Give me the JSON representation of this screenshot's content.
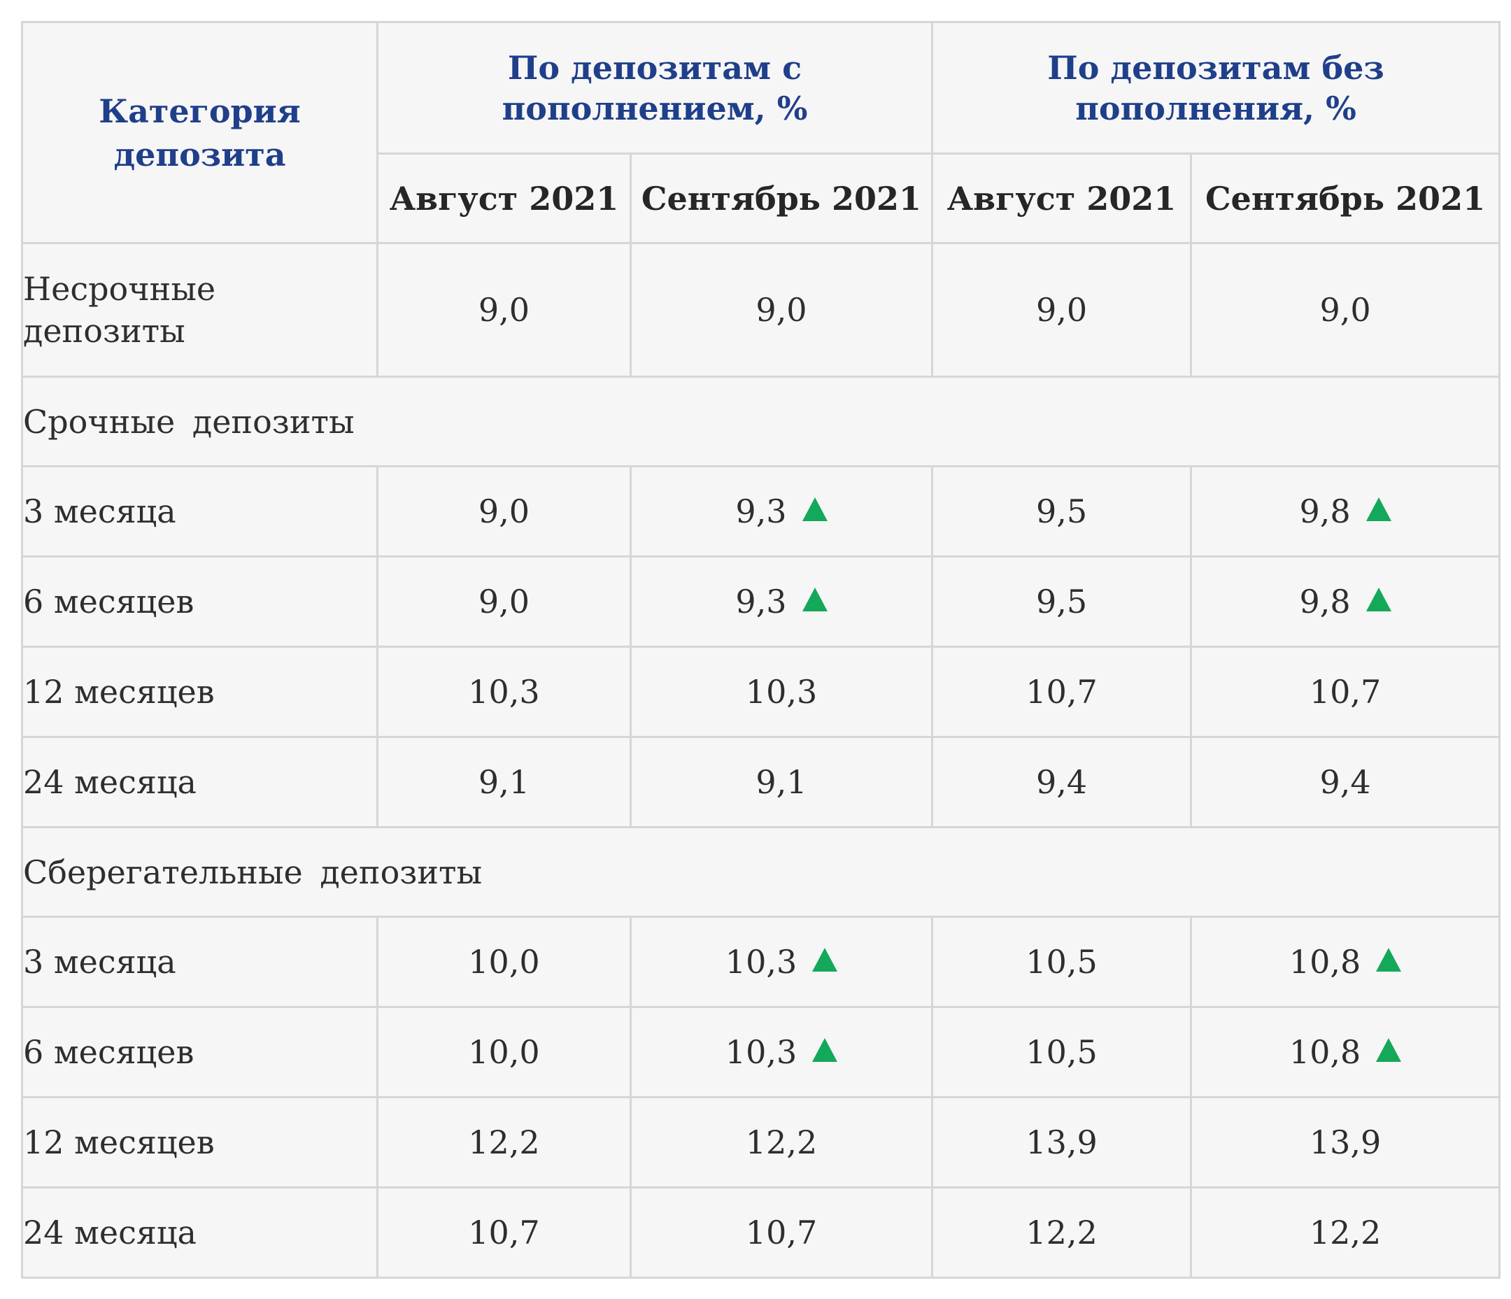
{
  "table": {
    "header": {
      "category": "Категория депозита",
      "group_with_topup": "По депозитам с пополнением, %",
      "group_without_topup": "По депозитам без пополнения, %",
      "months": [
        "Август 2021",
        "Сентябрь 2021",
        "Август 2021",
        "Сентябрь 2021"
      ]
    },
    "demand": {
      "label": "Несрочные депозиты",
      "values": [
        "9,0",
        "9,0",
        "9,0",
        "9,0"
      ],
      "up": [
        false,
        false,
        false,
        false
      ]
    },
    "term_section": "Срочные депозиты",
    "term_rows": [
      {
        "label": "3 месяца",
        "values": [
          "9,0",
          "9,3",
          "9,5",
          "9,8"
        ],
        "up": [
          false,
          true,
          false,
          true
        ]
      },
      {
        "label": "6 месяцев",
        "values": [
          "9,0",
          "9,3",
          "9,5",
          "9,8"
        ],
        "up": [
          false,
          true,
          false,
          true
        ]
      },
      {
        "label": "12 месяцев",
        "values": [
          "10,3",
          "10,3",
          "10,7",
          "10,7"
        ],
        "up": [
          false,
          false,
          false,
          false
        ]
      },
      {
        "label": "24 месяца",
        "values": [
          "9,1",
          "9,1",
          "9,4",
          "9,4"
        ],
        "up": [
          false,
          false,
          false,
          false
        ]
      }
    ],
    "savings_section": "Сберегательные депозиты",
    "savings_rows": [
      {
        "label": "3 месяца",
        "values": [
          "10,0",
          "10,3",
          "10,5",
          "10,8"
        ],
        "up": [
          false,
          true,
          false,
          true
        ]
      },
      {
        "label": "6 месяцев",
        "values": [
          "10,0",
          "10,3",
          "10,5",
          "10,8"
        ],
        "up": [
          false,
          true,
          false,
          true
        ]
      },
      {
        "label": "12 месяцев",
        "values": [
          "12,2",
          "12,2",
          "13,9",
          "13,9"
        ],
        "up": [
          false,
          false,
          false,
          false
        ]
      },
      {
        "label": "24 месяца",
        "values": [
          "10,7",
          "10,7",
          "12,2",
          "12,2"
        ],
        "up": [
          false,
          false,
          false,
          false
        ]
      }
    ],
    "colors": {
      "header_text": "#1f3f8a",
      "up_arrow": "#14a85a",
      "border": "#d6d6d6",
      "background": "#f6f6f6"
    },
    "icons": {
      "increase": "up-triangle-icon"
    }
  }
}
